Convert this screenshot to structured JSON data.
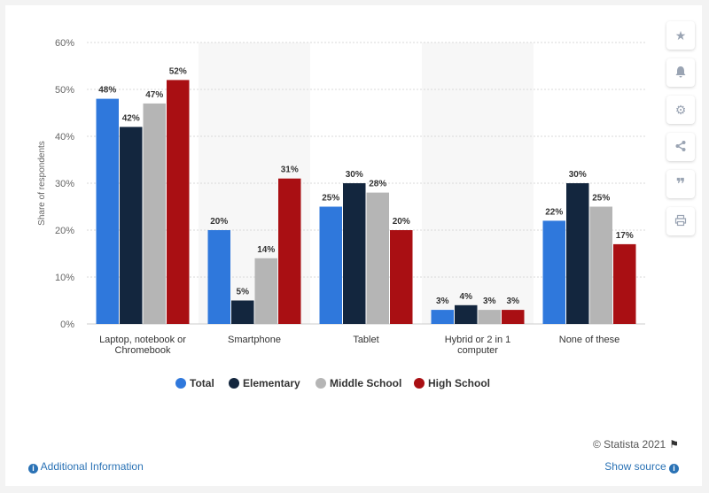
{
  "chart_data": {
    "type": "bar",
    "title": "",
    "ylabel": "Share of respondents",
    "xlabel": "",
    "ylim": [
      0,
      60
    ],
    "yticks": [
      "0%",
      "10%",
      "20%",
      "30%",
      "40%",
      "50%",
      "60%"
    ],
    "categories": [
      [
        "Laptop, notebook or",
        "Chromebook"
      ],
      [
        "Smartphone"
      ],
      [
        "Tablet"
      ],
      [
        "Hybrid or 2 in 1",
        "computer"
      ],
      [
        "None of these"
      ]
    ],
    "series": [
      {
        "name": "Total",
        "color": "#2f78dc",
        "values": [
          48,
          20,
          25,
          3,
          22
        ]
      },
      {
        "name": "Elementary",
        "color": "#13263e",
        "values": [
          42,
          5,
          30,
          4,
          30
        ]
      },
      {
        "name": "Middle School",
        "color": "#b5b5b5",
        "values": [
          47,
          14,
          28,
          3,
          25
        ]
      },
      {
        "name": "High School",
        "color": "#a90f13",
        "values": [
          52,
          31,
          20,
          3,
          17
        ]
      }
    ],
    "value_suffix": "%",
    "grid": true,
    "legend_position": "bottom"
  },
  "toolbar": {
    "icons": [
      "star-icon",
      "bell-icon",
      "gear-icon",
      "share-icon",
      "quote-icon",
      "print-icon"
    ]
  },
  "footer": {
    "credit": "© Statista 2021",
    "additional_info": "Additional Information",
    "show_source": "Show source"
  }
}
